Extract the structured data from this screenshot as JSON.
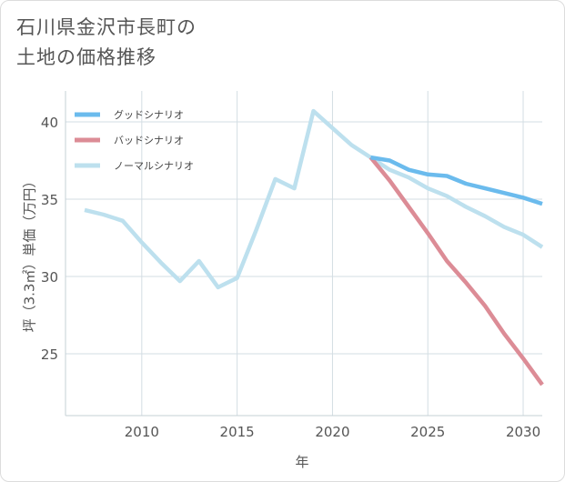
{
  "title_lines": [
    "石川県金沢市長町の",
    "土地の価格推移"
  ],
  "chart_data": {
    "type": "line",
    "title": "石川県金沢市長町の土地の価格推移",
    "xlabel": "年",
    "ylabel": "坪（3.3㎡）単価（万円）",
    "xlim": [
      2006,
      2031
    ],
    "ylim": [
      21,
      42
    ],
    "xticks": [
      2010,
      2015,
      2020,
      2025,
      2030
    ],
    "yticks": [
      25,
      30,
      35,
      40
    ],
    "grid": true,
    "legend_position": "top-left",
    "series": [
      {
        "name": "グッドシナリオ",
        "color": "#6bbbed",
        "x": [
          2022,
          2023,
          2024,
          2025,
          2026,
          2027,
          2028,
          2029,
          2030,
          2031
        ],
        "y": [
          37.7,
          37.5,
          36.9,
          36.6,
          36.5,
          36.0,
          35.7,
          35.4,
          35.1,
          34.7
        ]
      },
      {
        "name": "バッドシナリオ",
        "color": "#dc8c96",
        "x": [
          2022,
          2023,
          2024,
          2025,
          2026,
          2027,
          2028,
          2029,
          2030,
          2031
        ],
        "y": [
          37.7,
          36.2,
          34.5,
          32.8,
          31.0,
          29.6,
          28.1,
          26.3,
          24.7,
          23.0
        ]
      },
      {
        "name": "ノーマルシナリオ",
        "color": "#bde0ee",
        "x": [
          2007,
          2008,
          2009,
          2010,
          2011,
          2012,
          2013,
          2014,
          2015,
          2016,
          2017,
          2018,
          2019,
          2020,
          2021,
          2022,
          2023,
          2024,
          2025,
          2026,
          2027,
          2028,
          2029,
          2030,
          2031
        ],
        "y": [
          34.3,
          34.0,
          33.6,
          32.2,
          30.9,
          29.7,
          31.0,
          29.3,
          29.9,
          33.0,
          36.3,
          35.7,
          40.7,
          39.6,
          38.5,
          37.7,
          36.9,
          36.4,
          35.7,
          35.2,
          34.5,
          33.9,
          33.2,
          32.7,
          31.9
        ]
      }
    ]
  }
}
